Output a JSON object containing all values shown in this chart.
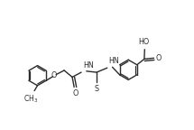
{
  "bg_color": "#ffffff",
  "line_color": "#2b2b2b",
  "figsize": [
    2.15,
    1.44
  ],
  "dpi": 100,
  "lw": 1.0,
  "fs": 5.8,
  "R": 0.52,
  "xlim": [
    0,
    10
  ],
  "ylim": [
    0,
    6.7
  ]
}
